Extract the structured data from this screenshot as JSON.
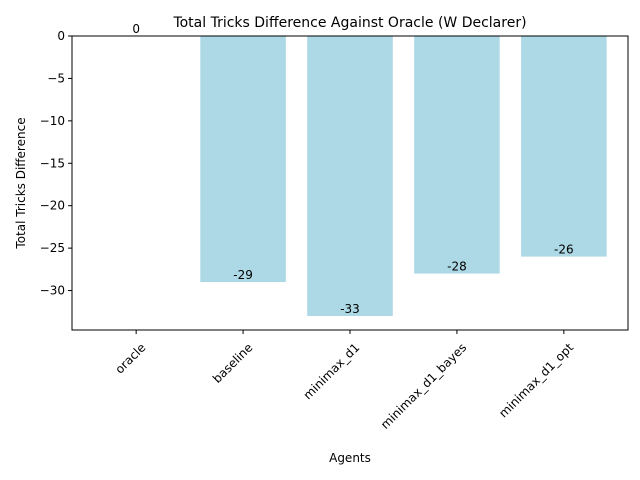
{
  "chart_data": {
    "type": "bar",
    "title": "Total Tricks Difference Against Oracle (W Declarer)",
    "xlabel": "Agents",
    "ylabel": "Total Tricks Difference",
    "categories": [
      "oracle",
      "baseline",
      "minimax_d1",
      "minimax_d1_bayes",
      "minimax_d1_opt"
    ],
    "values": [
      0,
      -29,
      -33,
      -28,
      -26
    ],
    "data_labels": [
      "0",
      "-29",
      "-33",
      "-28",
      "-26"
    ],
    "ylim": [
      -34.65,
      0
    ],
    "yticks": [
      0,
      -5,
      -10,
      -15,
      -20,
      -25,
      -30
    ],
    "ytick_labels": [
      "0",
      "−5",
      "−10",
      "−15",
      "−20",
      "−25",
      "−30"
    ],
    "x_tick_rotation": 45,
    "bar_color": "#add8e6",
    "grid": false,
    "legend": "none"
  }
}
